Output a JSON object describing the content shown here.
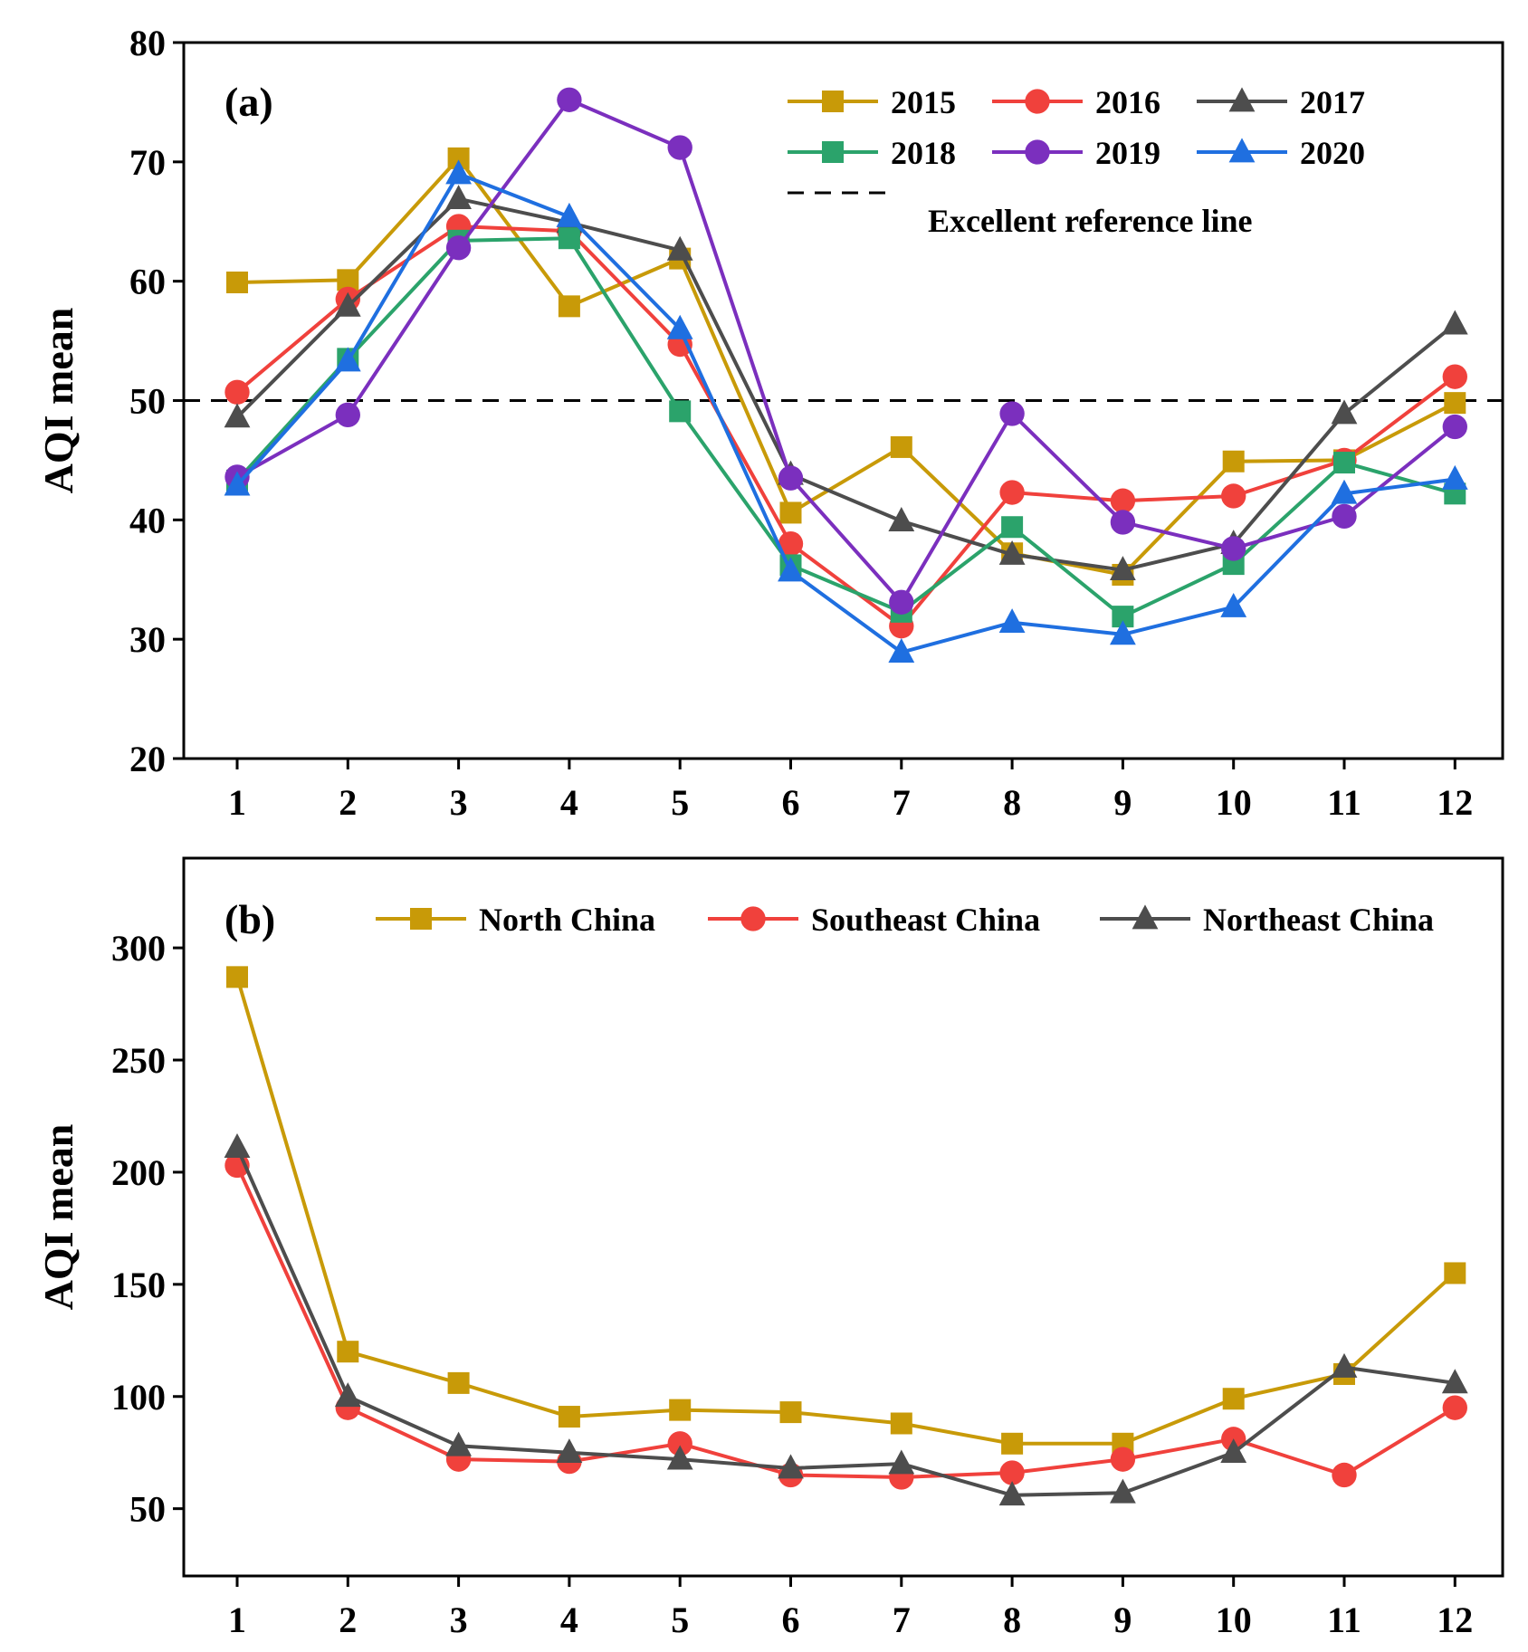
{
  "chart_data": [
    {
      "id": "a",
      "type": "line",
      "panel_label": "(a)",
      "xlabel": "",
      "ylabel": "AQI mean",
      "categories": [
        1,
        2,
        3,
        4,
        5,
        6,
        7,
        8,
        9,
        10,
        11,
        12
      ],
      "ylim": [
        20,
        80
      ],
      "yticks": [
        20,
        30,
        40,
        50,
        60,
        70,
        80
      ],
      "reference_line": {
        "value": 50,
        "label": "Excellent reference line",
        "color": "#000000"
      },
      "legend_position": "top-right",
      "series": [
        {
          "name": "2015",
          "color": "#C89A08",
          "marker": "square",
          "values": [
            59.9,
            60.1,
            70.3,
            57.9,
            61.9,
            40.6,
            46.1,
            37.2,
            35.4,
            44.9,
            45.0,
            49.8
          ]
        },
        {
          "name": "2016",
          "color": "#F0413C",
          "marker": "circle",
          "values": [
            50.7,
            58.5,
            64.6,
            64.2,
            54.7,
            38.0,
            31.1,
            42.3,
            41.6,
            42.0,
            45.0,
            52.0
          ]
        },
        {
          "name": "2017",
          "color": "#4D4D4D",
          "marker": "triangle",
          "values": [
            48.6,
            57.9,
            66.9,
            64.9,
            62.6,
            43.8,
            39.9,
            37.1,
            35.8,
            38.0,
            48.9,
            56.4
          ]
        },
        {
          "name": "2018",
          "color": "#2BA36B",
          "marker": "square",
          "values": [
            43.3,
            53.5,
            63.4,
            63.6,
            49.1,
            36.2,
            32.3,
            39.4,
            31.9,
            36.3,
            44.8,
            42.2
          ]
        },
        {
          "name": "2019",
          "color": "#7B2FBE",
          "marker": "circle",
          "values": [
            43.6,
            48.8,
            62.8,
            75.2,
            71.2,
            43.5,
            33.1,
            48.9,
            39.8,
            37.6,
            40.3,
            47.8
          ]
        },
        {
          "name": "2020",
          "color": "#1F6FE0",
          "marker": "triangle",
          "values": [
            42.9,
            53.3,
            69.0,
            65.4,
            56.0,
            35.7,
            28.9,
            31.4,
            30.4,
            32.7,
            42.2,
            43.4
          ]
        }
      ]
    },
    {
      "id": "b",
      "type": "line",
      "panel_label": "(b)",
      "xlabel": "",
      "ylabel": "AQI mean",
      "categories": [
        1,
        2,
        3,
        4,
        5,
        6,
        7,
        8,
        9,
        10,
        11,
        12
      ],
      "ylim": [
        20,
        340
      ],
      "yticks": [
        50,
        100,
        150,
        200,
        250,
        300
      ],
      "legend_position": "top",
      "series": [
        {
          "name": "North China",
          "color": "#C89A08",
          "marker": "square",
          "values": [
            287,
            120,
            106,
            91,
            94,
            93,
            88,
            79,
            79,
            99,
            110,
            155
          ]
        },
        {
          "name": "Southeast China",
          "color": "#F0413C",
          "marker": "circle",
          "values": [
            203,
            95,
            72,
            71,
            79,
            65,
            64,
            66,
            72,
            81,
            65,
            95
          ]
        },
        {
          "name": "Northeast China",
          "color": "#4D4D4D",
          "marker": "triangle",
          "values": [
            211,
            100,
            78,
            75,
            72,
            68,
            70,
            56,
            57,
            75,
            113,
            106
          ]
        }
      ]
    }
  ]
}
